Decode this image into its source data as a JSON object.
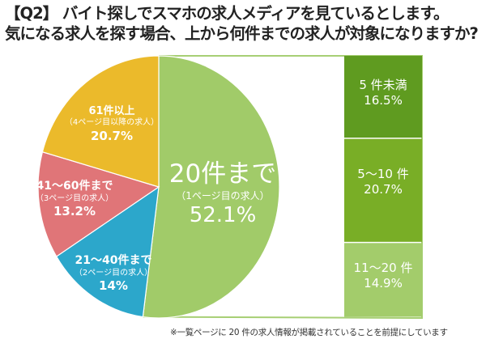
{
  "title": {
    "line1": "【Q2】 バイト探しでスマホの求人メディアを見ているとします。",
    "line2": "気になる求人を探す場合、上から何件までの求人が対象になりますか?"
  },
  "footnote": "※一覧ページに 20 件の求人情報が掲載されていることを前提にしています",
  "chart_data": {
    "type": "pie",
    "title": "上から何件までの求人が対象になりますか?",
    "slices": [
      {
        "name": "20件まで",
        "sub": "（1ページ目の求人）",
        "value": 52.1,
        "label": "52.1%",
        "color": "#a1cb69"
      },
      {
        "name": "21～40件まで",
        "sub": "（2ページ目の求人）",
        "value": 14,
        "label": "14%",
        "color": "#2ca7cb"
      },
      {
        "name": "41～60件まで",
        "sub": "（3ページ目の求人）",
        "value": 13.2,
        "label": "13.2%",
        "color": "#e07578"
      },
      {
        "name": "61件以上",
        "sub": "（4ページ目以降の求人）",
        "value": 20.7,
        "label": "20.7%",
        "color": "#ebba2b"
      }
    ],
    "breakdown": {
      "of": "20件まで",
      "segments": [
        {
          "name": "5 件未満",
          "value": 16.5,
          "label": "16.5%",
          "color": "#5f9b20"
        },
        {
          "name": "5～10 件",
          "value": 20.7,
          "label": "20.7%",
          "color": "#79ae26"
        },
        {
          "name": "11～20 件",
          "value": 14.9,
          "label": "14.9%",
          "color": "#a3cc6b"
        }
      ]
    }
  }
}
